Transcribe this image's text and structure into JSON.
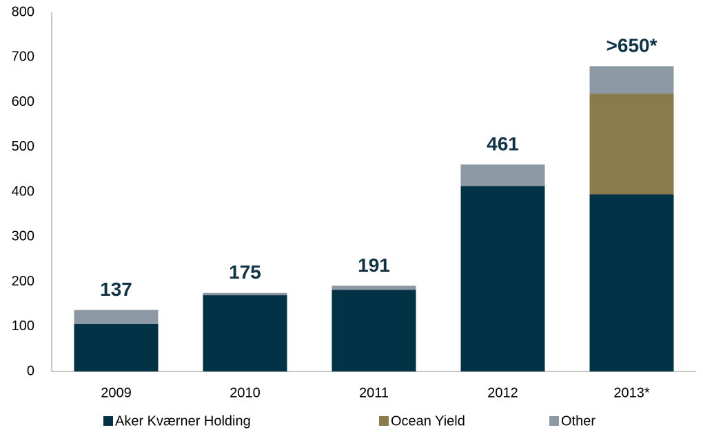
{
  "chart_data": {
    "type": "stacked_bar",
    "categories": [
      "2009",
      "2010",
      "2011",
      "2012",
      "2013*"
    ],
    "series": [
      {
        "name": "Aker Kværner Holding",
        "color": "#023246",
        "values": [
          106,
          170,
          182,
          413,
          395
        ]
      },
      {
        "name": "Ocean Yield",
        "color": "#8b7a4a",
        "values": [
          0,
          0,
          0,
          0,
          224
        ]
      },
      {
        "name": "Other",
        "color": "#8c99a4",
        "values": [
          31,
          5,
          9,
          48,
          61
        ]
      }
    ],
    "total_labels": [
      "137",
      "175",
      "191",
      "461",
      ">650*"
    ],
    "ylim": [
      0,
      800
    ],
    "yticks": [
      0,
      100,
      200,
      300,
      400,
      500,
      600,
      700,
      800
    ],
    "grid": false
  }
}
